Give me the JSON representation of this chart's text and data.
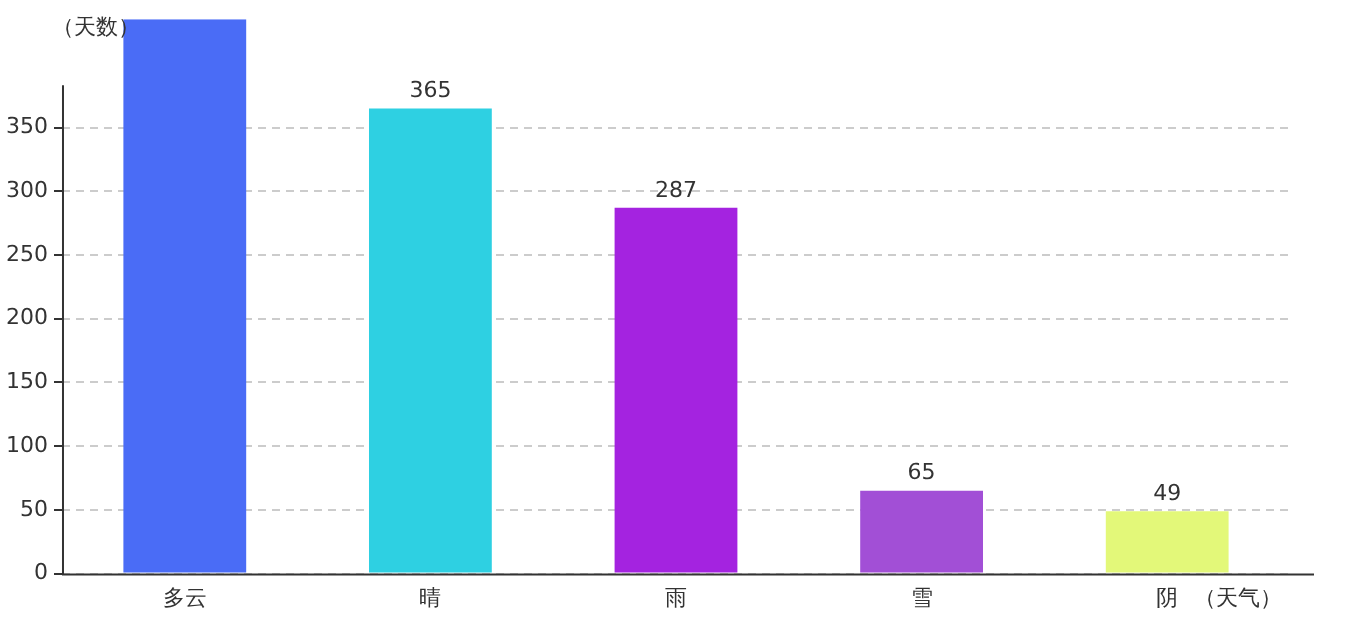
{
  "chart_data": {
    "type": "bar",
    "xlabel": "（天气）",
    "ylabel": "（天数）",
    "categories": [
      "多云",
      "晴",
      "雨",
      "雪",
      "阴"
    ],
    "values": [
      435,
      365,
      287,
      65,
      49
    ],
    "value_labels": [
      null,
      "365",
      "287",
      "65",
      "49"
    ],
    "colors": [
      "#4a6cf6",
      "#2ed0e2",
      "#a423e0",
      "#a24fd6",
      "#e3f879"
    ],
    "ylim": [
      0,
      435
    ],
    "yticks": [
      0,
      50,
      100,
      150,
      200,
      250,
      300,
      350
    ],
    "grid": "y",
    "legend": false
  }
}
